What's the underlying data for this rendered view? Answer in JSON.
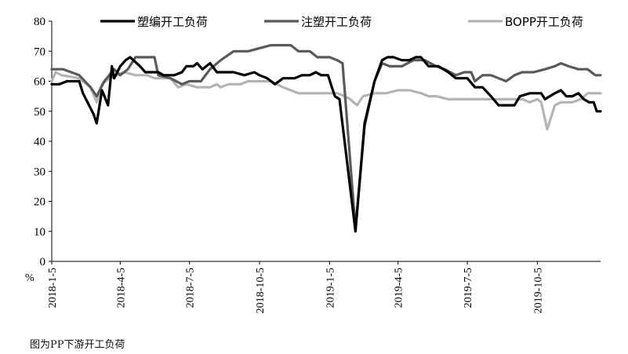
{
  "caption": "图为PP下游开工负荷",
  "chart_data": {
    "type": "line",
    "title": "",
    "xlabel": "",
    "ylabel": "%",
    "ylim": [
      0,
      80
    ],
    "yticks": [
      0,
      10,
      20,
      30,
      40,
      50,
      60,
      70,
      80
    ],
    "xlim": [
      "2018-01-05",
      "2019-12-27"
    ],
    "xtick_labels": [
      "2018-1-5",
      "2018-4-5",
      "2018-7-5",
      "2018-10-5",
      "2019-1-5",
      "2019-4-5",
      "2019-7-5",
      "2019-10-5"
    ],
    "grid": false,
    "legend_position": "top",
    "series": [
      {
        "name": "塑编开工负荷",
        "color": "#000000",
        "points": [
          [
            "2018-01-05",
            59
          ],
          [
            "2018-01-15",
            59
          ],
          [
            "2018-01-25",
            60
          ],
          [
            "2018-02-10",
            60
          ],
          [
            "2018-02-15",
            56
          ],
          [
            "2018-03-01",
            49
          ],
          [
            "2018-03-05",
            46
          ],
          [
            "2018-03-12",
            57
          ],
          [
            "2018-03-20",
            52
          ],
          [
            "2018-03-25",
            65
          ],
          [
            "2018-03-28",
            61
          ],
          [
            "2018-04-05",
            65
          ],
          [
            "2018-04-12",
            67
          ],
          [
            "2018-04-18",
            68
          ],
          [
            "2018-05-01",
            65
          ],
          [
            "2018-05-08",
            63
          ],
          [
            "2018-05-25",
            63
          ],
          [
            "2018-06-01",
            62
          ],
          [
            "2018-06-15",
            62
          ],
          [
            "2018-06-25",
            63
          ],
          [
            "2018-07-01",
            65
          ],
          [
            "2018-07-10",
            65
          ],
          [
            "2018-07-15",
            66
          ],
          [
            "2018-07-22",
            64
          ],
          [
            "2018-08-01",
            66
          ],
          [
            "2018-08-10",
            63
          ],
          [
            "2018-09-01",
            63
          ],
          [
            "2018-09-15",
            62
          ],
          [
            "2018-09-28",
            63
          ],
          [
            "2018-10-05",
            62
          ],
          [
            "2018-10-15",
            61
          ],
          [
            "2018-10-25",
            59
          ],
          [
            "2018-11-05",
            61
          ],
          [
            "2018-11-20",
            61
          ],
          [
            "2018-11-30",
            62
          ],
          [
            "2018-12-10",
            62
          ],
          [
            "2018-12-18",
            63
          ],
          [
            "2018-12-25",
            62
          ],
          [
            "2019-01-03",
            62
          ],
          [
            "2019-01-08",
            58
          ],
          [
            "2019-01-12",
            55
          ],
          [
            "2019-01-18",
            54
          ],
          [
            "2019-02-08",
            10
          ],
          [
            "2019-02-20",
            46
          ],
          [
            "2019-03-05",
            60
          ],
          [
            "2019-03-15",
            67
          ],
          [
            "2019-03-22",
            68
          ],
          [
            "2019-03-30",
            68
          ],
          [
            "2019-04-10",
            67
          ],
          [
            "2019-04-20",
            67
          ],
          [
            "2019-04-28",
            68
          ],
          [
            "2019-05-05",
            68
          ],
          [
            "2019-05-15",
            65
          ],
          [
            "2019-05-28",
            65
          ],
          [
            "2019-06-10",
            63
          ],
          [
            "2019-06-20",
            61
          ],
          [
            "2019-07-05",
            61
          ],
          [
            "2019-07-15",
            58
          ],
          [
            "2019-07-25",
            58
          ],
          [
            "2019-08-05",
            55
          ],
          [
            "2019-08-15",
            52
          ],
          [
            "2019-08-25",
            52
          ],
          [
            "2019-09-05",
            52
          ],
          [
            "2019-09-12",
            55
          ],
          [
            "2019-09-25",
            56
          ],
          [
            "2019-10-10",
            56
          ],
          [
            "2019-10-15",
            54
          ],
          [
            "2019-10-28",
            56
          ],
          [
            "2019-11-05",
            57
          ],
          [
            "2019-11-12",
            55
          ],
          [
            "2019-11-20",
            55
          ],
          [
            "2019-11-28",
            56
          ],
          [
            "2019-12-05",
            54
          ],
          [
            "2019-12-12",
            53
          ],
          [
            "2019-12-18",
            53
          ],
          [
            "2019-12-22",
            50
          ],
          [
            "2019-12-27",
            50
          ]
        ]
      },
      {
        "name": "注塑开工负荷",
        "color": "#5a5a5a",
        "points": [
          [
            "2018-01-05",
            64
          ],
          [
            "2018-01-20",
            64
          ],
          [
            "2018-02-10",
            62
          ],
          [
            "2018-02-25",
            58
          ],
          [
            "2018-03-05",
            55
          ],
          [
            "2018-03-15",
            60
          ],
          [
            "2018-03-28",
            64
          ],
          [
            "2018-04-05",
            62
          ],
          [
            "2018-04-15",
            64
          ],
          [
            "2018-04-25",
            68
          ],
          [
            "2018-05-10",
            68
          ],
          [
            "2018-05-20",
            68
          ],
          [
            "2018-05-25",
            62
          ],
          [
            "2018-06-10",
            61
          ],
          [
            "2018-06-25",
            59
          ],
          [
            "2018-07-05",
            60
          ],
          [
            "2018-07-20",
            60
          ],
          [
            "2018-08-01",
            64
          ],
          [
            "2018-08-15",
            67
          ],
          [
            "2018-09-01",
            70
          ],
          [
            "2018-09-20",
            70
          ],
          [
            "2018-10-05",
            71
          ],
          [
            "2018-10-20",
            72
          ],
          [
            "2018-11-05",
            72
          ],
          [
            "2018-11-15",
            72
          ],
          [
            "2018-11-25",
            70
          ],
          [
            "2018-12-10",
            70
          ],
          [
            "2018-12-20",
            68
          ],
          [
            "2019-01-05",
            68
          ],
          [
            "2019-01-15",
            67
          ],
          [
            "2019-01-22",
            66
          ],
          [
            "2019-02-08",
            11
          ],
          [
            "2019-02-20",
            45
          ],
          [
            "2019-03-05",
            60
          ],
          [
            "2019-03-15",
            66
          ],
          [
            "2019-03-25",
            65
          ],
          [
            "2019-04-10",
            65
          ],
          [
            "2019-04-25",
            67
          ],
          [
            "2019-05-10",
            67
          ],
          [
            "2019-05-25",
            65
          ],
          [
            "2019-06-05",
            64
          ],
          [
            "2019-06-20",
            62
          ],
          [
            "2019-07-01",
            63
          ],
          [
            "2019-07-10",
            63
          ],
          [
            "2019-07-15",
            60
          ],
          [
            "2019-07-25",
            62
          ],
          [
            "2019-08-05",
            62
          ],
          [
            "2019-08-15",
            61
          ],
          [
            "2019-08-25",
            60
          ],
          [
            "2019-09-05",
            62
          ],
          [
            "2019-09-15",
            63
          ],
          [
            "2019-09-30",
            63
          ],
          [
            "2019-10-15",
            64
          ],
          [
            "2019-10-28",
            65
          ],
          [
            "2019-11-05",
            66
          ],
          [
            "2019-11-15",
            65
          ],
          [
            "2019-11-28",
            64
          ],
          [
            "2019-12-10",
            64
          ],
          [
            "2019-12-20",
            62
          ],
          [
            "2019-12-27",
            62
          ]
        ]
      },
      {
        "name": "BOPP开工负荷",
        "color": "#b4b4b4",
        "points": [
          [
            "2018-01-05",
            60
          ],
          [
            "2018-01-10",
            63
          ],
          [
            "2018-01-18",
            62
          ],
          [
            "2018-02-10",
            61
          ],
          [
            "2018-02-25",
            58
          ],
          [
            "2018-03-05",
            53
          ],
          [
            "2018-03-12",
            59
          ],
          [
            "2018-03-22",
            61
          ],
          [
            "2018-04-01",
            62
          ],
          [
            "2018-04-10",
            63
          ],
          [
            "2018-04-25",
            62
          ],
          [
            "2018-05-10",
            62
          ],
          [
            "2018-05-20",
            61
          ],
          [
            "2018-05-30",
            61
          ],
          [
            "2018-06-10",
            61
          ],
          [
            "2018-06-20",
            58
          ],
          [
            "2018-07-01",
            59
          ],
          [
            "2018-07-15",
            58
          ],
          [
            "2018-08-01",
            58
          ],
          [
            "2018-08-10",
            59
          ],
          [
            "2018-08-15",
            58
          ],
          [
            "2018-08-25",
            59
          ],
          [
            "2018-09-10",
            59
          ],
          [
            "2018-09-20",
            60
          ],
          [
            "2018-10-10",
            60
          ],
          [
            "2018-10-20",
            60
          ],
          [
            "2018-10-28",
            59
          ],
          [
            "2018-11-05",
            58
          ],
          [
            "2018-11-15",
            57
          ],
          [
            "2018-11-25",
            56
          ],
          [
            "2018-12-15",
            56
          ],
          [
            "2019-01-05",
            56
          ],
          [
            "2019-01-15",
            56
          ],
          [
            "2019-01-25",
            55
          ],
          [
            "2019-02-01",
            54
          ],
          [
            "2019-02-10",
            52
          ],
          [
            "2019-02-18",
            55
          ],
          [
            "2019-03-05",
            56
          ],
          [
            "2019-03-20",
            56
          ],
          [
            "2019-04-05",
            57
          ],
          [
            "2019-04-20",
            57
          ],
          [
            "2019-05-05",
            56
          ],
          [
            "2019-05-15",
            55
          ],
          [
            "2019-05-25",
            55
          ],
          [
            "2019-06-10",
            54
          ],
          [
            "2019-06-25",
            54
          ],
          [
            "2019-07-15",
            54
          ],
          [
            "2019-07-30",
            54
          ],
          [
            "2019-08-15",
            54
          ],
          [
            "2019-08-30",
            54
          ],
          [
            "2019-09-15",
            54
          ],
          [
            "2019-09-25",
            53
          ],
          [
            "2019-10-05",
            54
          ],
          [
            "2019-10-10",
            53
          ],
          [
            "2019-10-18",
            44
          ],
          [
            "2019-10-28",
            52
          ],
          [
            "2019-11-05",
            53
          ],
          [
            "2019-11-20",
            53
          ],
          [
            "2019-12-01",
            54
          ],
          [
            "2019-12-10",
            56
          ],
          [
            "2019-12-27",
            56
          ]
        ]
      }
    ]
  }
}
